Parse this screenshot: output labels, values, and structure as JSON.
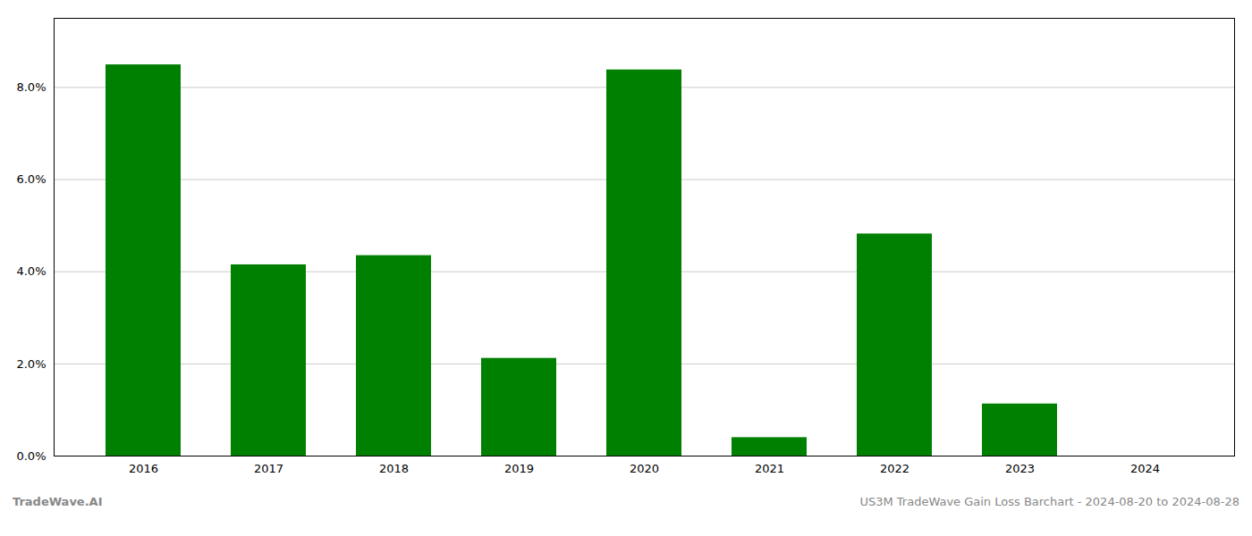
{
  "chart_data": {
    "type": "bar",
    "title": "US3M TradeWave Gain Loss Barchart - 2024-08-20 to 2024-08-28",
    "annotations": [
      {
        "text": "TradeWave.AI"
      }
    ],
    "categories": [
      "2016",
      "2017",
      "2018",
      "2019",
      "2020",
      "2021",
      "2022",
      "2023",
      "2024"
    ],
    "values": [
      0.0849,
      0.0415,
      0.0435,
      0.0212,
      0.0838,
      0.004,
      0.0482,
      0.0113,
      0.0
    ],
    "color": "#008000",
    "ylim": [
      0,
      0.095
    ],
    "yticks": [
      {
        "value": 0.0,
        "label": "0.0%"
      },
      {
        "value": 0.02,
        "label": "2.0%"
      },
      {
        "value": 0.04,
        "label": "4.0%"
      },
      {
        "value": 0.06,
        "label": "6.0%"
      },
      {
        "value": 0.08,
        "label": "8.0%"
      }
    ],
    "grid": true
  }
}
